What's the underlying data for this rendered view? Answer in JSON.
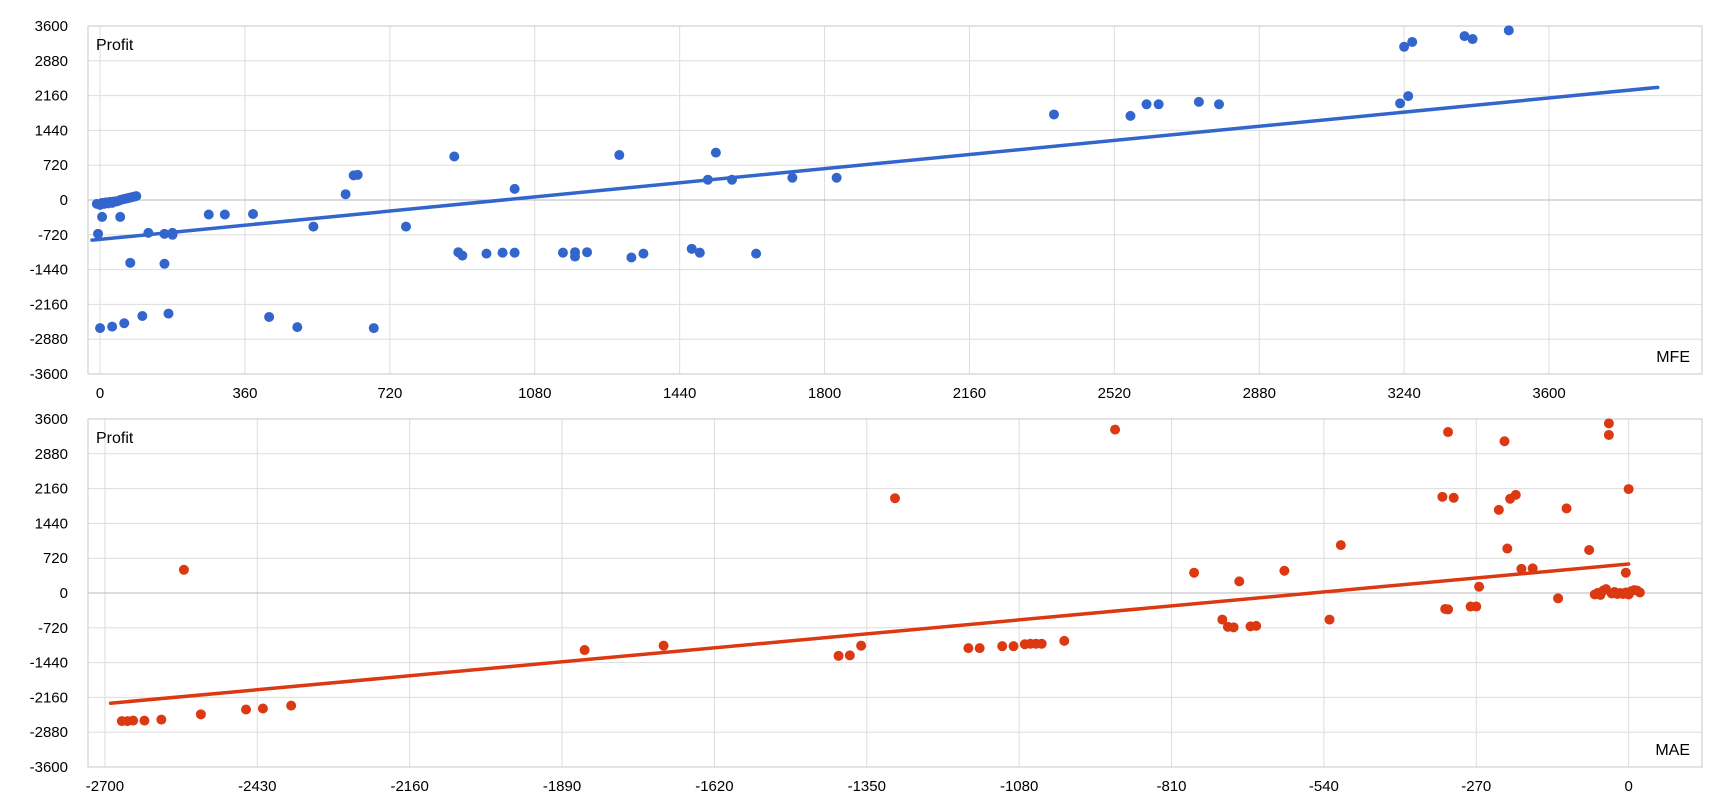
{
  "chart_data": [
    {
      "type": "scatter",
      "xlabel": "MFE",
      "ylabel": "Profit",
      "xlim": [
        -30,
        3980
      ],
      "ylim": [
        -3600,
        3600
      ],
      "x_ticks": [
        0,
        360,
        720,
        1080,
        1440,
        1800,
        2160,
        2520,
        2880,
        3240,
        3600
      ],
      "y_ticks": [
        3600,
        2880,
        2160,
        1440,
        720,
        0,
        -720,
        -1440,
        -2160,
        -2880,
        -3600
      ],
      "grid": true,
      "color": "#3366cc",
      "trendline": {
        "x1": -20,
        "y1": -830,
        "x2": 3870,
        "y2": 2330
      },
      "points": [
        [
          -8,
          -80
        ],
        [
          0,
          -100
        ],
        [
          5,
          -60
        ],
        [
          10,
          -80
        ],
        [
          15,
          -50
        ],
        [
          20,
          -70
        ],
        [
          25,
          -40
        ],
        [
          30,
          -60
        ],
        [
          35,
          -30
        ],
        [
          40,
          -30
        ],
        [
          45,
          -20
        ],
        [
          50,
          0
        ],
        [
          55,
          10
        ],
        [
          60,
          20
        ],
        [
          65,
          30
        ],
        [
          70,
          40
        ],
        [
          75,
          50
        ],
        [
          80,
          60
        ],
        [
          85,
          70
        ],
        [
          90,
          80
        ],
        [
          5,
          -350
        ],
        [
          50,
          -350
        ],
        [
          -5,
          -700
        ],
        [
          120,
          -680
        ],
        [
          160,
          -700
        ],
        [
          180,
          -680
        ],
        [
          180,
          -720
        ],
        [
          75,
          -1300
        ],
        [
          160,
          -1320
        ],
        [
          0,
          -2650
        ],
        [
          30,
          -2620
        ],
        [
          60,
          -2550
        ],
        [
          105,
          -2400
        ],
        [
          170,
          -2350
        ],
        [
          270,
          -300
        ],
        [
          310,
          -300
        ],
        [
          380,
          -290
        ],
        [
          530,
          -550
        ],
        [
          420,
          -2420
        ],
        [
          490,
          -2630
        ],
        [
          610,
          120
        ],
        [
          630,
          510
        ],
        [
          640,
          520
        ],
        [
          680,
          -2650
        ],
        [
          760,
          -550
        ],
        [
          880,
          900
        ],
        [
          890,
          -1080
        ],
        [
          900,
          -1150
        ],
        [
          960,
          -1110
        ],
        [
          1000,
          -1090
        ],
        [
          1030,
          -1090
        ],
        [
          1030,
          230
        ],
        [
          1150,
          -1090
        ],
        [
          1180,
          -1080
        ],
        [
          1180,
          -1170
        ],
        [
          1210,
          -1080
        ],
        [
          1290,
          930
        ],
        [
          1320,
          -1190
        ],
        [
          1350,
          -1110
        ],
        [
          1470,
          -1010
        ],
        [
          1490,
          -1090
        ],
        [
          1510,
          420
        ],
        [
          1530,
          980
        ],
        [
          1570,
          420
        ],
        [
          1630,
          -1110
        ],
        [
          1720,
          460
        ],
        [
          1830,
          460
        ],
        [
          2370,
          1770
        ],
        [
          2560,
          1740
        ],
        [
          2600,
          1980
        ],
        [
          2630,
          1980
        ],
        [
          2730,
          2030
        ],
        [
          2780,
          1980
        ],
        [
          3230,
          2000
        ],
        [
          3240,
          3170
        ],
        [
          3250,
          2150
        ],
        [
          3260,
          3270
        ],
        [
          3390,
          3390
        ],
        [
          3410,
          3330
        ],
        [
          3500,
          3510
        ]
      ]
    },
    {
      "type": "scatter",
      "xlabel": "MAE",
      "ylabel": "Profit",
      "xlim": [
        -2730,
        130
      ],
      "ylim": [
        -3600,
        3600
      ],
      "x_ticks": [
        -2700,
        -2430,
        -2160,
        -1890,
        -1620,
        -1350,
        -1080,
        -810,
        -540,
        -270,
        0
      ],
      "y_ticks": [
        3600,
        2880,
        2160,
        1440,
        720,
        0,
        -720,
        -1440,
        -2160,
        -2880,
        -3600
      ],
      "grid": true,
      "color": "#dc3912",
      "trendline": {
        "x1": -2690,
        "y1": -2280,
        "x2": 0,
        "y2": 600
      },
      "points": [
        [
          -2670,
          -2650
        ],
        [
          -2660,
          -2650
        ],
        [
          -2650,
          -2640
        ],
        [
          -2630,
          -2640
        ],
        [
          -2600,
          -2620
        ],
        [
          -2560,
          480
        ],
        [
          -2530,
          -2510
        ],
        [
          -2450,
          -2410
        ],
        [
          -2420,
          -2390
        ],
        [
          -2370,
          -2330
        ],
        [
          -1850,
          -1180
        ],
        [
          -1710,
          -1090
        ],
        [
          -1400,
          -1300
        ],
        [
          -1380,
          -1290
        ],
        [
          -1360,
          -1090
        ],
        [
          -1300,
          1960
        ],
        [
          -1170,
          -1140
        ],
        [
          -1150,
          -1140
        ],
        [
          -1110,
          -1100
        ],
        [
          -1090,
          -1100
        ],
        [
          -1070,
          -1060
        ],
        [
          -1060,
          -1050
        ],
        [
          -1050,
          -1050
        ],
        [
          -1040,
          -1050
        ],
        [
          -1000,
          -990
        ],
        [
          -910,
          3380
        ],
        [
          -770,
          420
        ],
        [
          -720,
          -550
        ],
        [
          -710,
          -700
        ],
        [
          -700,
          -710
        ],
        [
          -690,
          240
        ],
        [
          -670,
          -690
        ],
        [
          -660,
          -680
        ],
        [
          -610,
          460
        ],
        [
          -530,
          -550
        ],
        [
          -510,
          990
        ],
        [
          -330,
          1990
        ],
        [
          -325,
          -330
        ],
        [
          -320,
          -340
        ],
        [
          -320,
          3330
        ],
        [
          -310,
          1970
        ],
        [
          -280,
          -280
        ],
        [
          -270,
          -280
        ],
        [
          -265,
          130
        ],
        [
          -230,
          1720
        ],
        [
          -220,
          3140
        ],
        [
          -215,
          920
        ],
        [
          -210,
          1950
        ],
        [
          -200,
          2030
        ],
        [
          -190,
          500
        ],
        [
          -170,
          510
        ],
        [
          -125,
          -110
        ],
        [
          -110,
          1750
        ],
        [
          -70,
          890
        ],
        [
          -60,
          -30
        ],
        [
          -55,
          0
        ],
        [
          -50,
          -40
        ],
        [
          -45,
          50
        ],
        [
          -40,
          80
        ],
        [
          -35,
          3510
        ],
        [
          -35,
          3270
        ],
        [
          -30,
          -10
        ],
        [
          -25,
          20
        ],
        [
          -20,
          -20
        ],
        [
          -15,
          0
        ],
        [
          -10,
          -20
        ],
        [
          -5,
          10
        ],
        [
          0,
          -30
        ],
        [
          5,
          40
        ],
        [
          10,
          60
        ],
        [
          15,
          50
        ],
        [
          20,
          10
        ],
        [
          -5,
          420
        ],
        [
          0,
          2150
        ]
      ]
    }
  ]
}
